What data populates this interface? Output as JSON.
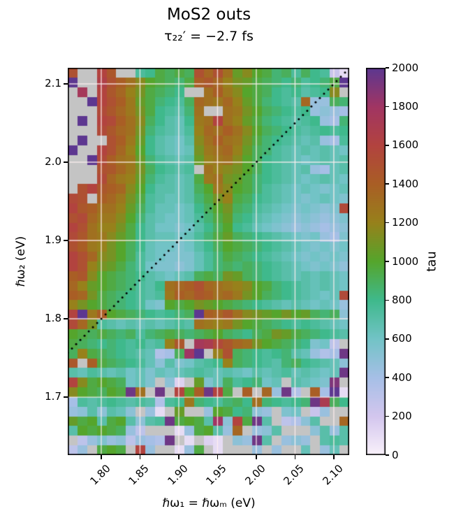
{
  "figure": {
    "title": "MoS2 outs",
    "subtitle": "τ₂₂′ = −2.7 fs"
  },
  "chart_data": {
    "type": "heatmap",
    "title": "MoS2 outs",
    "subtitle": "τ₂₂′ = −2.7 fs",
    "xlabel": "ℏω₁ = ℏωₘ (eV)",
    "ylabel": "ℏω₂ (eV)",
    "colorbar_label": "tau",
    "x_range": [
      1.7568,
      2.1199
    ],
    "y_range": [
      1.626,
      2.1205
    ],
    "x_ticks": [
      "1.80",
      "1.85",
      "1.90",
      "1.95",
      "2.00",
      "2.05",
      "2.10"
    ],
    "x_tick_values": [
      1.8,
      1.85,
      1.9,
      1.95,
      2.0,
      2.05,
      2.1
    ],
    "y_ticks": [
      "2.1",
      "2.0",
      "1.9",
      "1.8",
      "1.7"
    ],
    "y_tick_values": [
      2.1,
      2.0,
      1.9,
      1.8,
      1.7
    ],
    "colorbar_ticks": [
      2000,
      1800,
      1600,
      1400,
      1200,
      1000,
      800,
      600,
      400,
      200,
      0
    ],
    "vmin": 0,
    "vmax": 2000,
    "colormap_stops": [
      [
        0,
        "#f9f1fa"
      ],
      [
        200,
        "#d3c6ee"
      ],
      [
        400,
        "#a6bfe6"
      ],
      [
        600,
        "#72c3c6"
      ],
      [
        800,
        "#3fb98c"
      ],
      [
        1000,
        "#55a52c"
      ],
      [
        1200,
        "#97811b"
      ],
      [
        1400,
        "#a95e25"
      ],
      [
        1600,
        "#b2433f"
      ],
      [
        1800,
        "#a13563"
      ],
      [
        2000,
        "#5d3790"
      ]
    ],
    "nan_color": "#c4c4c4",
    "grid_color": "rgba(255,240,240,0.85)",
    "diagonal": {
      "style": "dotted",
      "color": "#000000",
      "from_xy": [
        1.7568,
        1.7568
      ],
      "to_xy": [
        2.1199,
        2.1199
      ]
    },
    "values": [
      [
        1500,
        null,
        null,
        1600,
        1450,
        null,
        null,
        750,
        800,
        950,
        900,
        950,
        900,
        1500,
        1350,
        1500,
        1300,
        1050,
        1150,
        1000,
        950,
        850,
        900,
        750,
        900,
        800,
        750,
        250,
        100
      ],
      [
        2000,
        null,
        null,
        1650,
        1500,
        1400,
        1300,
        1150,
        1000,
        950,
        900,
        850,
        950,
        1400,
        1450,
        1350,
        1200,
        1100,
        1050,
        950,
        900,
        850,
        800,
        850,
        750,
        800,
        850,
        950,
        2000
      ],
      [
        null,
        1750,
        null,
        1600,
        1450,
        1350,
        1200,
        1100,
        950,
        900,
        850,
        800,
        null,
        null,
        1300,
        1400,
        1250,
        1150,
        1000,
        950,
        900,
        800,
        750,
        800,
        700,
        750,
        800,
        1150,
        null
      ],
      [
        null,
        null,
        2000,
        1600,
        1500,
        1400,
        1250,
        1050,
        950,
        850,
        800,
        750,
        900,
        1350,
        1300,
        1250,
        1350,
        1200,
        1050,
        950,
        850,
        800,
        750,
        700,
        1350,
        450,
        450,
        900,
        850
      ],
      [
        null,
        null,
        null,
        1550,
        1450,
        1350,
        1250,
        1100,
        950,
        800,
        750,
        700,
        850,
        1300,
        null,
        null,
        1300,
        1250,
        1100,
        1000,
        900,
        850,
        800,
        750,
        800,
        450,
        500,
        450,
        400
      ],
      [
        null,
        2000,
        null,
        1600,
        1550,
        1400,
        1300,
        1150,
        900,
        800,
        700,
        650,
        800,
        1250,
        1300,
        1600,
        1300,
        1200,
        1050,
        950,
        850,
        800,
        750,
        700,
        750,
        800,
        450,
        400,
        850
      ],
      [
        null,
        null,
        null,
        1550,
        1450,
        1350,
        1300,
        1100,
        850,
        750,
        700,
        650,
        750,
        1200,
        1350,
        1300,
        1400,
        1300,
        1150,
        1000,
        900,
        850,
        800,
        750,
        700,
        750,
        800,
        750,
        800
      ],
      [
        null,
        2000,
        null,
        null,
        1500,
        1400,
        1250,
        1050,
        800,
        700,
        650,
        600,
        700,
        1150,
        1300,
        1400,
        1300,
        1250,
        1100,
        950,
        850,
        800,
        750,
        700,
        650,
        700,
        450,
        400,
        750
      ],
      [
        2000,
        null,
        null,
        1600,
        1500,
        1350,
        1200,
        1000,
        800,
        700,
        650,
        600,
        650,
        1100,
        1250,
        1300,
        1350,
        1200,
        1050,
        900,
        850,
        750,
        700,
        650,
        700,
        650,
        700,
        650,
        600
      ],
      [
        null,
        null,
        2000,
        1550,
        1400,
        1300,
        1250,
        1050,
        850,
        750,
        700,
        650,
        700,
        1050,
        1200,
        1250,
        1300,
        1150,
        1000,
        900,
        800,
        750,
        700,
        650,
        600,
        650,
        700,
        650,
        700
      ],
      [
        null,
        null,
        null,
        1500,
        1450,
        1350,
        1250,
        1100,
        900,
        800,
        750,
        700,
        750,
        null,
        1300,
        1200,
        1150,
        1100,
        1000,
        900,
        800,
        750,
        700,
        650,
        700,
        450,
        400,
        650,
        700
      ],
      [
        null,
        null,
        null,
        1550,
        1350,
        1250,
        1200,
        1050,
        850,
        750,
        700,
        650,
        700,
        950,
        1250,
        1300,
        1100,
        1050,
        950,
        850,
        800,
        750,
        700,
        650,
        600,
        650,
        700,
        650,
        600
      ],
      [
        null,
        1500,
        1600,
        1450,
        1400,
        1350,
        1150,
        1000,
        800,
        700,
        700,
        650,
        700,
        900,
        1000,
        1250,
        1150,
        1000,
        950,
        850,
        750,
        700,
        650,
        600,
        650,
        600,
        550,
        600,
        650
      ],
      [
        1550,
        1500,
        null,
        1400,
        1350,
        1250,
        1100,
        950,
        750,
        700,
        650,
        650,
        700,
        850,
        950,
        1100,
        1200,
        950,
        900,
        800,
        750,
        700,
        650,
        600,
        550,
        600,
        650,
        600,
        550
      ],
      [
        1600,
        1450,
        1400,
        1300,
        1300,
        1200,
        1050,
        900,
        750,
        650,
        650,
        600,
        650,
        800,
        900,
        1000,
        1100,
        900,
        850,
        750,
        700,
        650,
        600,
        550,
        600,
        550,
        500,
        550,
        1550
      ],
      [
        1500,
        1550,
        1350,
        1250,
        1250,
        1150,
        1000,
        850,
        700,
        650,
        600,
        600,
        650,
        750,
        850,
        950,
        1050,
        850,
        800,
        700,
        650,
        600,
        550,
        500,
        550,
        500,
        450,
        500,
        550
      ],
      [
        1600,
        1500,
        1300,
        1200,
        1200,
        1100,
        950,
        800,
        700,
        600,
        600,
        550,
        600,
        700,
        800,
        900,
        1000,
        800,
        750,
        650,
        600,
        550,
        500,
        450,
        500,
        450,
        400,
        450,
        500
      ],
      [
        1550,
        1450,
        1300,
        1250,
        1150,
        1050,
        950,
        800,
        700,
        650,
        650,
        600,
        650,
        750,
        850,
        950,
        1050,
        900,
        850,
        800,
        750,
        700,
        650,
        600,
        550,
        600,
        450,
        400,
        550
      ],
      [
        1500,
        1400,
        1250,
        1200,
        1100,
        1000,
        900,
        800,
        650,
        600,
        600,
        550,
        600,
        700,
        800,
        900,
        1000,
        950,
        900,
        850,
        800,
        750,
        700,
        650,
        600,
        550,
        600,
        550,
        600
      ],
      [
        1600,
        1500,
        1350,
        1150,
        1100,
        1000,
        900,
        750,
        650,
        600,
        550,
        550,
        550,
        650,
        750,
        850,
        950,
        900,
        850,
        800,
        750,
        700,
        650,
        600,
        550,
        600,
        550,
        600,
        550
      ],
      [
        1600,
        1500,
        1200,
        1100,
        1050,
        950,
        850,
        750,
        600,
        550,
        550,
        500,
        550,
        650,
        750,
        850,
        900,
        850,
        900,
        850,
        800,
        750,
        700,
        650,
        600,
        550,
        600,
        550,
        480
      ],
      [
        1400,
        1450,
        1150,
        1000,
        950,
        900,
        850,
        800,
        700,
        650,
        600,
        650,
        700,
        900,
        950,
        900,
        1100,
        1050,
        900,
        850,
        800,
        750,
        700,
        650,
        700,
        650,
        700,
        650,
        600
      ],
      [
        1350,
        1200,
        1050,
        1000,
        950,
        900,
        850,
        750,
        700,
        800,
        1300,
        1350,
        1400,
        1500,
        1350,
        1300,
        1250,
        1200,
        1150,
        1000,
        950,
        850,
        800,
        750,
        700,
        650,
        700,
        650,
        600
      ],
      [
        1400,
        1350,
        1100,
        950,
        900,
        850,
        800,
        750,
        700,
        750,
        1250,
        1400,
        1350,
        1450,
        1400,
        1300,
        1350,
        1250,
        1100,
        1000,
        900,
        850,
        800,
        750,
        700,
        650,
        600,
        650,
        1550
      ],
      [
        1200,
        1100,
        1000,
        950,
        900,
        850,
        800,
        750,
        600,
        550,
        1000,
        950,
        1000,
        1100,
        1050,
        1000,
        950,
        900,
        850,
        800,
        750,
        700,
        650,
        700,
        650,
        600,
        650,
        600,
        450
      ],
      [
        1600,
        2000,
        1250,
        1400,
        1000,
        950,
        900,
        850,
        800,
        750,
        800,
        850,
        900,
        2000,
        1400,
        1350,
        1450,
        1300,
        1150,
        1100,
        1050,
        1000,
        1100,
        1000,
        1050,
        900,
        850,
        900,
        500
      ],
      [
        1550,
        1350,
        1100,
        750,
        700,
        650,
        700,
        650,
        700,
        650,
        700,
        750,
        700,
        1300,
        1250,
        1200,
        1250,
        1100,
        1000,
        950,
        900,
        850,
        800,
        750,
        800,
        750,
        700,
        650,
        600
      ],
      [
        1000,
        950,
        900,
        950,
        900,
        850,
        900,
        750,
        850,
        900,
        950,
        900,
        850,
        900,
        950,
        1000,
        900,
        850,
        800,
        900,
        950,
        1100,
        1050,
        950,
        900,
        850,
        800,
        750,
        700
      ],
      [
        950,
        900,
        850,
        800,
        850,
        800,
        750,
        800,
        700,
        750,
        1200,
        1450,
        null,
        1750,
        1700,
        1550,
        1450,
        1350,
        1300,
        1100,
        1000,
        950,
        900,
        850,
        800,
        550,
        600,
        300,
        null
      ],
      [
        900,
        1200,
        950,
        900,
        850,
        800,
        750,
        700,
        650,
        350,
        400,
        900,
        1800,
        2000,
        null,
        1200,
        1500,
        900,
        850,
        800,
        750,
        800,
        850,
        700,
        650,
        450,
        350,
        400,
        1950
      ],
      [
        1450,
        null,
        1400,
        950,
        900,
        850,
        800,
        750,
        650,
        500,
        700,
        550,
        600,
        700,
        750,
        800,
        1200,
        900,
        850,
        800,
        750,
        700,
        850,
        900,
        800,
        750,
        700,
        650,
        500
      ],
      [
        700,
        650,
        750,
        700,
        650,
        700,
        600,
        650,
        550,
        650,
        600,
        650,
        700,
        750,
        700,
        650,
        700,
        650,
        600,
        700,
        650,
        700,
        750,
        650,
        700,
        650,
        600,
        650,
        1950
      ],
      [
        1600,
        1150,
        950,
        1000,
        950,
        900,
        600,
        650,
        550,
        null,
        500,
        150,
        null,
        1050,
        550,
        650,
        900,
        750,
        800,
        850,
        600,
        650,
        null,
        700,
        650,
        600,
        550,
        1900,
        null
      ],
      [
        1150,
        1000,
        950,
        900,
        1000,
        950,
        1950,
        1300,
        null,
        1950,
        null,
        1600,
        1000,
        1400,
        1950,
        1600,
        950,
        null,
        1400,
        null,
        1350,
        450,
        1950,
        350,
        null,
        1400,
        400,
        2000,
        100
      ],
      [
        400,
        750,
        700,
        750,
        800,
        750,
        700,
        750,
        700,
        350,
        750,
        800,
        1250,
        850,
        800,
        750,
        850,
        900,
        800,
        1300,
        850,
        800,
        750,
        800,
        850,
        1950,
        1700,
        900,
        800
      ],
      [
        450,
        500,
        700,
        500,
        700,
        650,
        500,
        null,
        450,
        100,
        null,
        1050,
        null,
        null,
        450,
        1000,
        950,
        800,
        850,
        500,
        450,
        null,
        550,
        600,
        null,
        250,
        450,
        null,
        null
      ],
      [
        1050,
        950,
        1000,
        700,
        950,
        1000,
        700,
        500,
        700,
        750,
        1950,
        950,
        1000,
        950,
        700,
        1800,
        500,
        1600,
        950,
        1950,
        700,
        null,
        300,
        350,
        500,
        700,
        null,
        null,
        1350
      ],
      [
        700,
        1000,
        950,
        1000,
        950,
        900,
        450,
        300,
        null,
        null,
        null,
        100,
        450,
        950,
        1000,
        700,
        450,
        1350,
        null,
        450,
        500,
        700,
        null,
        null,
        null,
        500,
        700,
        450,
        700
      ],
      [
        null,
        300,
        450,
        550,
        450,
        500,
        300,
        450,
        400,
        350,
        1950,
        null,
        100,
        null,
        150,
        100,
        null,
        500,
        450,
        1950,
        700,
        null,
        450,
        500,
        450,
        null,
        700,
        750,
        700
      ],
      [
        300,
        450,
        null,
        950,
        1000,
        950,
        null,
        1600,
        450,
        null,
        null,
        100,
        450,
        950,
        null,
        100,
        null,
        null,
        null,
        450,
        null,
        450,
        null,
        null,
        650,
        null,
        450,
        650,
        null
      ]
    ]
  }
}
